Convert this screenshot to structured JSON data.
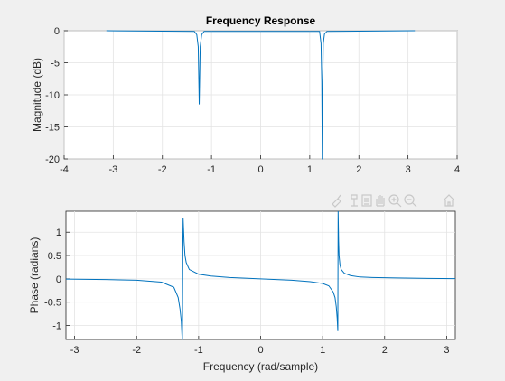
{
  "figure": {
    "background": "#f0f0f0",
    "line_color": "#0072bd",
    "toolbar": [
      "brush-icon",
      "datatip-icon",
      "save-icon",
      "pan-icon",
      "zoom-in-icon",
      "zoom-out-icon",
      "home-icon"
    ]
  },
  "chart_data": [
    {
      "type": "line",
      "title": "Frequency Response",
      "xlabel": "",
      "ylabel": "Magnitude (dB)",
      "xlim": [
        -4,
        4
      ],
      "ylim": [
        -20,
        0
      ],
      "xticks": [
        "-4",
        "-3",
        "-2",
        "-1",
        "0",
        "1",
        "2",
        "3",
        "4"
      ],
      "yticks": [
        "0",
        "-5",
        "-10",
        "-15",
        "-20"
      ],
      "grid": true,
      "series": [
        {
          "x": [
            -3.14,
            -1.35,
            -1.3,
            -1.27,
            -1.25,
            -1.23,
            -1.2,
            -1.15,
            1.2,
            1.23,
            1.245,
            1.255,
            1.26,
            1.265,
            1.275,
            1.3,
            1.35,
            3.14
          ],
          "y": [
            0,
            -0.1,
            -0.6,
            -2.5,
            -11.5,
            -2.5,
            -0.6,
            -0.1,
            -0.1,
            -2,
            -8,
            -20,
            -20,
            -8,
            -2,
            -0.5,
            -0.1,
            0
          ]
        }
      ]
    },
    {
      "type": "line",
      "title": "",
      "xlabel": "Frequency (rad/sample)",
      "ylabel": "Phase (radians)",
      "xlim": [
        -3.14,
        3.14
      ],
      "ylim": [
        -1.3,
        1.45
      ],
      "xticks": [
        "-3",
        "-2",
        "-1",
        "0",
        "1",
        "2",
        "3"
      ],
      "yticks": [
        "1",
        "0.5",
        "0",
        "-0.5",
        "-1"
      ],
      "grid": true,
      "series": [
        {
          "x": [
            -3.14,
            -2.5,
            -2.0,
            -1.6,
            -1.4,
            -1.33,
            -1.3,
            -1.28,
            -1.265,
            -1.262,
            -1.255,
            -1.25,
            -1.235,
            -1.22,
            -1.2,
            -1.15,
            -1.0,
            -0.8,
            -0.5,
            0,
            0.5,
            0.8,
            1.0,
            1.1,
            1.17,
            1.2,
            1.22,
            1.235,
            1.245,
            1.25,
            1.258,
            1.265,
            1.28,
            1.3,
            1.35,
            1.45,
            1.6,
            1.8,
            2.2,
            2.7,
            3.14
          ],
          "y": [
            -0.005,
            -0.015,
            -0.03,
            -0.07,
            -0.18,
            -0.4,
            -0.65,
            -0.9,
            -1.3,
            -1.3,
            0.6,
            1.3,
            0.8,
            0.5,
            0.35,
            0.2,
            0.1,
            0.06,
            0.03,
            0,
            -0.03,
            -0.06,
            -0.1,
            -0.15,
            -0.28,
            -0.4,
            -0.6,
            -0.85,
            -1.12,
            1.45,
            0.8,
            0.5,
            0.3,
            0.2,
            0.12,
            0.07,
            0.04,
            0.03,
            0.02,
            0.01,
            0.005
          ]
        }
      ]
    }
  ]
}
